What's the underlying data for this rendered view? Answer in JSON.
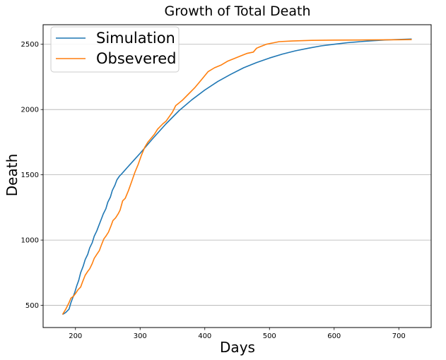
{
  "chart_data": {
    "type": "line",
    "title": "Growth of Total Death",
    "xlabel": "Days",
    "ylabel": "Death",
    "xlim": [
      150,
      750
    ],
    "ylim": [
      330,
      2650
    ],
    "xticks": [
      200,
      300,
      400,
      500,
      600,
      700
    ],
    "yticks": [
      500,
      1000,
      1500,
      2000,
      2500
    ],
    "grid": "horizontal",
    "legend_position": "top-left",
    "series": [
      {
        "name": "Simulation",
        "color": "#1f77b4",
        "points": [
          [
            180,
            430
          ],
          [
            185,
            445
          ],
          [
            190,
            470
          ],
          [
            193,
            520
          ],
          [
            196,
            560
          ],
          [
            199,
            600
          ],
          [
            202,
            650
          ],
          [
            205,
            690
          ],
          [
            208,
            750
          ],
          [
            212,
            800
          ],
          [
            215,
            850
          ],
          [
            219,
            890
          ],
          [
            222,
            940
          ],
          [
            226,
            980
          ],
          [
            229,
            1030
          ],
          [
            233,
            1070
          ],
          [
            236,
            1110
          ],
          [
            240,
            1160
          ],
          [
            243,
            1200
          ],
          [
            247,
            1240
          ],
          [
            250,
            1290
          ],
          [
            254,
            1330
          ],
          [
            257,
            1380
          ],
          [
            261,
            1420
          ],
          [
            264,
            1460
          ],
          [
            268,
            1490
          ],
          [
            272,
            1510
          ],
          [
            280,
            1555
          ],
          [
            290,
            1610
          ],
          [
            300,
            1665
          ],
          [
            320,
            1780
          ],
          [
            340,
            1890
          ],
          [
            360,
            1990
          ],
          [
            380,
            2075
          ],
          [
            400,
            2150
          ],
          [
            420,
            2215
          ],
          [
            440,
            2270
          ],
          [
            460,
            2320
          ],
          [
            480,
            2360
          ],
          [
            500,
            2395
          ],
          [
            520,
            2425
          ],
          [
            540,
            2450
          ],
          [
            560,
            2470
          ],
          [
            580,
            2488
          ],
          [
            600,
            2500
          ],
          [
            620,
            2512
          ],
          [
            640,
            2520
          ],
          [
            660,
            2527
          ],
          [
            680,
            2533
          ],
          [
            700,
            2537
          ],
          [
            720,
            2540
          ]
        ]
      },
      {
        "name": "Obsevered",
        "color": "#ff7f0e",
        "points": [
          [
            180,
            430
          ],
          [
            185,
            470
          ],
          [
            190,
            520
          ],
          [
            193,
            555
          ],
          [
            197,
            570
          ],
          [
            200,
            590
          ],
          [
            204,
            620
          ],
          [
            208,
            640
          ],
          [
            211,
            680
          ],
          [
            215,
            730
          ],
          [
            219,
            760
          ],
          [
            222,
            780
          ],
          [
            226,
            820
          ],
          [
            229,
            860
          ],
          [
            233,
            890
          ],
          [
            237,
            920
          ],
          [
            240,
            960
          ],
          [
            244,
            1010
          ],
          [
            247,
            1030
          ],
          [
            251,
            1060
          ],
          [
            255,
            1110
          ],
          [
            258,
            1150
          ],
          [
            262,
            1170
          ],
          [
            266,
            1200
          ],
          [
            269,
            1230
          ],
          [
            273,
            1300
          ],
          [
            277,
            1320
          ],
          [
            282,
            1380
          ],
          [
            287,
            1450
          ],
          [
            292,
            1520
          ],
          [
            297,
            1580
          ],
          [
            302,
            1650
          ],
          [
            307,
            1710
          ],
          [
            312,
            1750
          ],
          [
            317,
            1780
          ],
          [
            322,
            1810
          ],
          [
            327,
            1850
          ],
          [
            335,
            1890
          ],
          [
            340,
            1910
          ],
          [
            350,
            1980
          ],
          [
            355,
            2030
          ],
          [
            365,
            2070
          ],
          [
            375,
            2120
          ],
          [
            385,
            2170
          ],
          [
            395,
            2230
          ],
          [
            405,
            2290
          ],
          [
            415,
            2320
          ],
          [
            425,
            2340
          ],
          [
            435,
            2370
          ],
          [
            445,
            2390
          ],
          [
            455,
            2410
          ],
          [
            465,
            2430
          ],
          [
            475,
            2440
          ],
          [
            480,
            2470
          ],
          [
            485,
            2480
          ],
          [
            495,
            2500
          ],
          [
            505,
            2510
          ],
          [
            515,
            2520
          ],
          [
            535,
            2525
          ],
          [
            565,
            2530
          ],
          [
            600,
            2532
          ],
          [
            650,
            2533
          ],
          [
            700,
            2535
          ],
          [
            720,
            2536
          ]
        ]
      }
    ]
  }
}
